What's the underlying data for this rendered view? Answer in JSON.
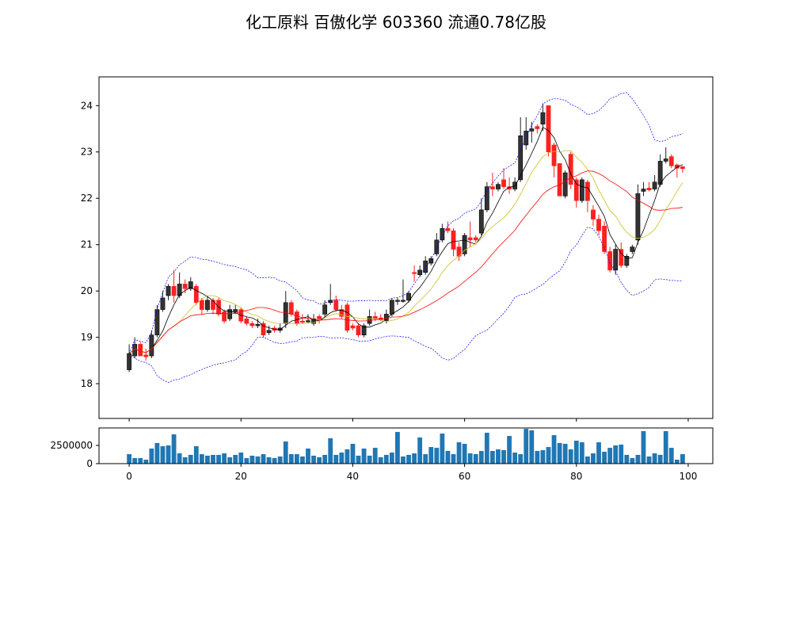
{
  "chart_data": {
    "type": "candlestick",
    "title": "化工原料 百傲化学 603360 流通0.78亿股",
    "xlim": [
      -5.4,
      104.4
    ],
    "price_ylim": [
      17.25,
      24.62
    ],
    "price_yticks": [
      18,
      19,
      20,
      21,
      22,
      23,
      24
    ],
    "volume_ylim": [
      0,
      4900000
    ],
    "volume_yticks": [
      0,
      2500000
    ],
    "xticks": [
      0,
      20,
      40,
      60,
      80,
      100
    ],
    "up_color": "#333333",
    "down_color": "#ff2020",
    "volume_color": "#1f77b4",
    "lines": [
      {
        "name": "MA5",
        "window": 5,
        "color": "#000000",
        "style": "solid"
      },
      {
        "name": "MA10",
        "window": 10,
        "color": "#c8c020",
        "style": "solid"
      },
      {
        "name": "MA20",
        "window": 20,
        "color": "#ff0000",
        "style": "solid"
      },
      {
        "name": "BOLL upper",
        "window": 20,
        "color": "#0000ff",
        "style": "dashed",
        "k": 2
      },
      {
        "name": "BOLL lower",
        "window": 20,
        "color": "#0000ff",
        "style": "dashed",
        "k": -2
      }
    ],
    "open": [
      18.3,
      18.6,
      18.85,
      18.62,
      18.6,
      19.05,
      19.6,
      19.9,
      20.1,
      19.9,
      20.15,
      20.05,
      20.1,
      19.8,
      19.6,
      19.8,
      19.8,
      19.55,
      19.4,
      19.55,
      19.6,
      19.4,
      19.3,
      19.25,
      19.3,
      19.1,
      19.2,
      19.15,
      19.3,
      19.75,
      19.55,
      19.35,
      19.35,
      19.3,
      19.45,
      19.5,
      19.75,
      19.8,
      19.6,
      19.7,
      19.25,
      19.25,
      19.05,
      19.3,
      19.45,
      19.42,
      19.35,
      19.5,
      19.78,
      19.8,
      19.8,
      20.4,
      20.35,
      20.4,
      20.6,
      20.8,
      21.1,
      21.35,
      21.3,
      20.95,
      20.8,
      21.15,
      21.15,
      21.25,
      21.75,
      22.25,
      22.2,
      22.4,
      22.25,
      22.2,
      22.4,
      23.15,
      23.45,
      23.55,
      23.6,
      24.0,
      23.15,
      22.75,
      22.05,
      22.95,
      22.4,
      21.95,
      22.35,
      21.75,
      21.55,
      21.4,
      20.85,
      20.45,
      20.9,
      20.55,
      20.85,
      21.1,
      22.15,
      22.22,
      22.2,
      22.3,
      22.8,
      22.9,
      22.72,
      22.68
    ],
    "close": [
      18.65,
      18.85,
      18.6,
      18.58,
      19.05,
      19.6,
      19.85,
      20.1,
      19.9,
      20.15,
      20.05,
      20.2,
      19.75,
      19.6,
      19.8,
      19.6,
      19.5,
      19.35,
      19.6,
      19.6,
      19.35,
      19.3,
      19.25,
      19.28,
      19.05,
      19.15,
      19.15,
      19.2,
      19.75,
      19.5,
      19.3,
      19.33,
      19.36,
      19.4,
      19.4,
      19.7,
      19.8,
      19.6,
      19.45,
      19.15,
      19.2,
      19.05,
      19.25,
      19.45,
      19.4,
      19.38,
      19.5,
      19.8,
      19.8,
      19.8,
      19.95,
      20.38,
      20.45,
      20.65,
      20.7,
      21.1,
      21.35,
      21.3,
      20.9,
      20.75,
      21.2,
      21.1,
      21.1,
      21.75,
      22.25,
      22.2,
      22.3,
      22.25,
      22.2,
      22.35,
      23.35,
      23.45,
      23.5,
      23.5,
      23.85,
      23.0,
      22.7,
      22.05,
      22.55,
      22.3,
      21.95,
      22.4,
      21.95,
      21.55,
      21.3,
      20.85,
      20.45,
      20.9,
      20.55,
      20.75,
      20.95,
      22.1,
      22.2,
      22.18,
      22.35,
      22.8,
      22.85,
      22.7,
      22.65,
      22.64
    ],
    "high": [
      18.85,
      19.0,
      18.9,
      18.75,
      19.15,
      19.7,
      20.0,
      20.15,
      20.45,
      20.4,
      20.25,
      20.3,
      20.15,
      19.85,
      19.9,
      19.85,
      19.85,
      19.6,
      19.7,
      19.7,
      19.65,
      19.45,
      19.35,
      19.4,
      19.35,
      19.25,
      19.25,
      19.3,
      20.0,
      19.8,
      19.6,
      19.5,
      19.5,
      19.5,
      19.5,
      19.8,
      20.15,
      19.9,
      19.7,
      19.75,
      19.3,
      19.3,
      19.3,
      19.6,
      19.55,
      19.5,
      19.6,
      19.85,
      19.85,
      20.25,
      20.0,
      20.55,
      20.55,
      20.75,
      20.75,
      21.25,
      21.45,
      21.5,
      21.35,
      21.05,
      21.25,
      21.5,
      21.2,
      22.0,
      22.35,
      22.55,
      22.35,
      22.65,
      22.45,
      22.45,
      23.75,
      23.75,
      23.65,
      23.6,
      24.05,
      24.0,
      23.2,
      22.75,
      22.6,
      23.0,
      22.45,
      22.45,
      22.4,
      21.85,
      21.65,
      21.5,
      20.95,
      21.0,
      21.05,
      20.8,
      21.0,
      22.3,
      22.35,
      22.35,
      22.5,
      22.95,
      23.1,
      22.95,
      22.75,
      22.7
    ],
    "low": [
      18.25,
      18.55,
      18.6,
      18.5,
      18.55,
      19.0,
      19.55,
      19.8,
      19.75,
      19.85,
      19.95,
      20.0,
      19.7,
      19.5,
      19.55,
      19.5,
      19.45,
      19.3,
      19.35,
      19.5,
      19.3,
      19.25,
      19.2,
      19.2,
      19.0,
      19.05,
      19.1,
      19.1,
      19.2,
      19.45,
      19.25,
      19.3,
      19.3,
      19.25,
      19.3,
      19.45,
      19.7,
      19.55,
      19.4,
      19.1,
      19.15,
      19.0,
      19.0,
      19.25,
      19.35,
      19.35,
      19.3,
      19.45,
      19.7,
      19.75,
      19.75,
      20.2,
      20.3,
      20.35,
      20.55,
      20.75,
      21.05,
      21.25,
      20.75,
      20.65,
      20.75,
      20.95,
      21.05,
      21.2,
      21.7,
      22.05,
      22.15,
      22.2,
      22.1,
      22.15,
      22.35,
      23.05,
      23.2,
      23.4,
      23.45,
      22.9,
      22.45,
      22.05,
      22.0,
      22.2,
      21.8,
      21.9,
      21.7,
      21.4,
      21.2,
      20.8,
      20.4,
      20.35,
      20.5,
      20.5,
      20.8,
      21.0,
      22.05,
      22.15,
      22.15,
      22.25,
      22.75,
      22.65,
      22.45,
      22.55
    ],
    "volume": [
      1300000,
      760000,
      760000,
      540000,
      2070000,
      2830000,
      2390000,
      2500000,
      4020000,
      1410000,
      870000,
      1200000,
      2390000,
      1300000,
      1090000,
      1200000,
      1200000,
      1410000,
      870000,
      1200000,
      1520000,
      760000,
      1090000,
      980000,
      1300000,
      870000,
      760000,
      980000,
      3040000,
      1300000,
      1300000,
      980000,
      2070000,
      1090000,
      870000,
      1200000,
      3480000,
      1200000,
      1520000,
      1960000,
      2720000,
      1090000,
      2070000,
      1090000,
      2170000,
      870000,
      1200000,
      1520000,
      4350000,
      980000,
      1200000,
      1410000,
      3590000,
      1300000,
      2280000,
      2170000,
      4130000,
      1740000,
      1300000,
      2930000,
      2720000,
      1410000,
      1300000,
      1740000,
      4240000,
      1740000,
      1960000,
      1850000,
      3800000,
      1520000,
      1300000,
      4780000,
      4570000,
      1740000,
      1850000,
      2280000,
      3910000,
      2830000,
      2720000,
      1960000,
      3150000,
      2930000,
      980000,
      1410000,
      2930000,
      1630000,
      2170000,
      2500000,
      2610000,
      1200000,
      760000,
      1200000,
      4460000,
      980000,
      1410000,
      1200000,
      4460000,
      2170000,
      540000,
      1300000
    ]
  }
}
